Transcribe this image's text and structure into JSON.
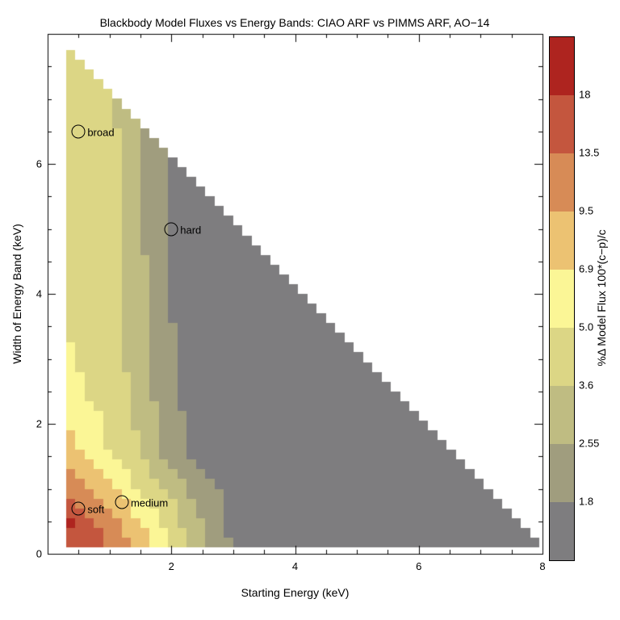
{
  "title": "Blackbody Model Fluxes vs Energy Bands: CIAO ARF vs PIMMS ARF, AO−14",
  "axes": {
    "x": {
      "label": "Starting Energy (keV)",
      "min": 0,
      "max": 8,
      "major_ticks": [
        2,
        4,
        6,
        8
      ],
      "minor_tick_step": 0.5
    },
    "y": {
      "label": "Width of Energy Band (keV)",
      "min": 0,
      "max": 8,
      "major_ticks": [
        0,
        2,
        4,
        6
      ],
      "minor_tick_step": 0.5
    }
  },
  "colorbar": {
    "label": "%Δ Model Flux 100*(c−p)/c",
    "tick_labels_top_to_bottom": [
      "18",
      "13.5",
      "9.5",
      "6.9",
      "5.0",
      "3.6",
      "2.55",
      "1.8"
    ],
    "levels_low_to_high": [
      1.8,
      2.55,
      3.6,
      5.0,
      6.9,
      9.5,
      13.5,
      18
    ],
    "band_colors_low_to_high": [
      "#7e7d7f",
      "#a09d7e",
      "#bfbc82",
      "#dcd685",
      "#fbf696",
      "#ecc272",
      "#d78b56",
      "#c4563e",
      "#ae241f"
    ]
  },
  "chart_data": {
    "type": "heatmap",
    "subtype": "filled-contour, stepped cells",
    "title": "Blackbody Model Fluxes vs Energy Bands: CIAO ARF vs PIMMS ARF, AO−14",
    "xlabel": "Starting Energy (keV)",
    "ylabel": "Width of Energy Band (keV)",
    "zlabel": "%Δ Model Flux 100*(c−p)/c",
    "x_range": [
      0,
      8
    ],
    "y_range": [
      0,
      8
    ],
    "grid": false,
    "domain_constraint": "colored triangular region only where start+width <= 8 keV (staircase hypotenuse); start >= 0.3 keV, width >= 0.1 keV",
    "contour_levels": [
      1.8,
      2.55,
      3.6,
      5.0,
      6.9,
      9.5,
      13.5,
      18
    ],
    "band_colors": [
      "#7e7d7f",
      "#a09d7e",
      "#bfbc82",
      "#dcd685",
      "#fbf696",
      "#ecc272",
      "#d78b56",
      "#c4563e",
      "#ae241f"
    ],
    "cell_size_kev": 0.15,
    "value_grid": {
      "description": "percent flux difference sampled on coarse grid (rows=width nodes, cols=start nodes); log-bilinear interpolation reproduces the contour bands",
      "s_nodes": [
        0.3,
        0.55,
        0.8,
        1.1,
        1.5,
        2.0,
        2.5,
        3.0,
        4.0,
        8.0
      ],
      "w_nodes": [
        0.1,
        0.45,
        0.8,
        1.5,
        2.5,
        4.0,
        6.0,
        7.7
      ],
      "values": [
        [
          16.0,
          15.5,
          14.5,
          12.0,
          8.3,
          4.9,
          2.8,
          1.7,
          1.5,
          1.2
        ],
        [
          19.5,
          17.5,
          13.5,
          10.0,
          7.0,
          4.3,
          2.55,
          1.65,
          1.45,
          1.15
        ],
        [
          14.5,
          12.5,
          10.5,
          8.0,
          5.6,
          3.7,
          2.35,
          1.6,
          1.4,
          1.1
        ],
        [
          8.2,
          7.0,
          5.8,
          4.7,
          3.6,
          2.1,
          1.55,
          1.45,
          1.3,
          1.05
        ],
        [
          5.7,
          5.1,
          4.7,
          4.1,
          3.2,
          1.85,
          1.6,
          1.45,
          1.3,
          1.0
        ],
        [
          4.7,
          4.4,
          4.1,
          3.8,
          2.8,
          1.8,
          1.55,
          1.4,
          1.25,
          1.0
        ],
        [
          4.4,
          4.15,
          3.9,
          3.7,
          2.55,
          1.7,
          1.5,
          1.35,
          1.2,
          1.0
        ],
        [
          4.2,
          4.0,
          3.8,
          3.65,
          2.5,
          1.65,
          1.45,
          1.3,
          1.15,
          1.0
        ]
      ]
    },
    "annotated_points": [
      {
        "label": "broad",
        "start_kev": 0.5,
        "width_kev": 6.5
      },
      {
        "label": "hard",
        "start_kev": 2.0,
        "width_kev": 5.0
      },
      {
        "label": "soft",
        "start_kev": 0.5,
        "width_kev": 0.7
      },
      {
        "label": "medium",
        "start_kev": 1.2,
        "width_kev": 0.8
      }
    ]
  }
}
